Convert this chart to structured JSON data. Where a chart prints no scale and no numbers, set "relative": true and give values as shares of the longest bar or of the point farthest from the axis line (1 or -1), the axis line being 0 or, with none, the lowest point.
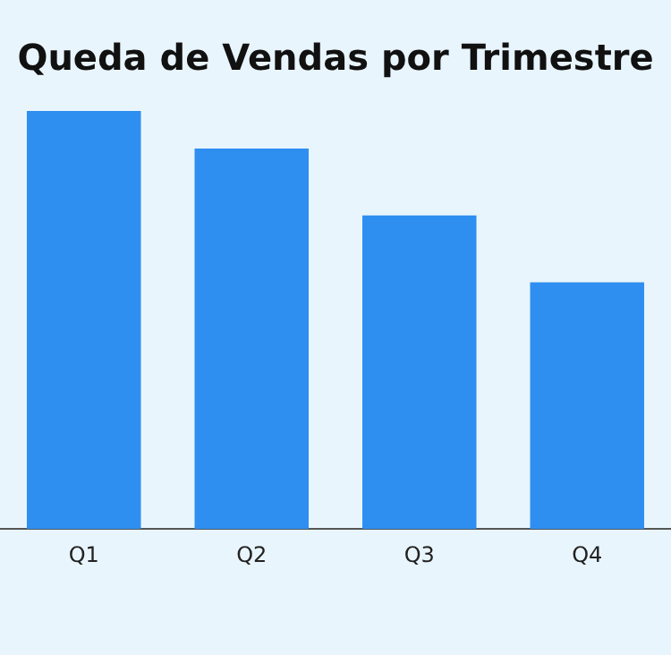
{
  "chart_data": {
    "type": "bar",
    "title": "Queda de Vendas por Trimestre",
    "categories": [
      "Q1",
      "Q2",
      "Q3",
      "Q4"
    ],
    "values": [
      1,
      0.91,
      0.75,
      0.59
    ],
    "color": "#2e8ff0",
    "relative": true
  }
}
